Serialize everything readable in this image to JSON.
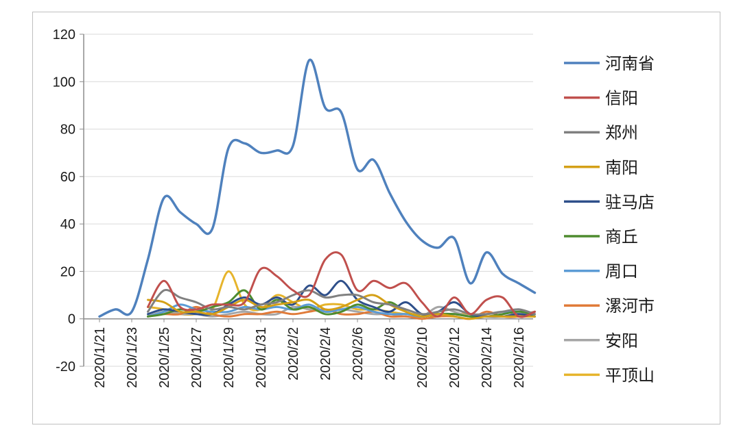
{
  "chart_data": {
    "type": "line",
    "title": "",
    "xlabel": "",
    "ylabel": "",
    "ylim": [
      -20,
      120
    ],
    "yticks": [
      -20,
      0,
      20,
      40,
      60,
      80,
      100,
      120
    ],
    "grid": "horizontal",
    "legend": "right",
    "x": [
      "2020/1/21",
      "2020/1/22",
      "2020/1/23",
      "2020/1/24",
      "2020/1/25",
      "2020/1/26",
      "2020/1/27",
      "2020/1/28",
      "2020/1/29",
      "2020/1/30",
      "2020/1/31",
      "2020/2/1",
      "2020/2/2",
      "2020/2/3",
      "2020/2/4",
      "2020/2/5",
      "2020/2/6",
      "2020/2/7",
      "2020/2/8",
      "2020/2/9",
      "2020/2/10",
      "2020/2/11",
      "2020/2/12",
      "2020/2/13",
      "2020/2/14",
      "2020/2/15",
      "2020/2/16",
      "2020/2/17"
    ],
    "xtick_labels": [
      "2020/1/21",
      "2020/1/23",
      "2020/1/25",
      "2020/1/27",
      "2020/1/29",
      "2020/1/31",
      "2020/2/2",
      "2020/2/4",
      "2020/2/6",
      "2020/2/8",
      "2020/2/10",
      "2020/2/12",
      "2020/2/14",
      "2020/2/16"
    ],
    "series": [
      {
        "name": "河南省",
        "color": "#4f81bd",
        "values": [
          1,
          4,
          3,
          25,
          51,
          45,
          40,
          38,
          72,
          74,
          70,
          71,
          73,
          109,
          89,
          87,
          63,
          67,
          53,
          41,
          33,
          30,
          34,
          15,
          28,
          19,
          15,
          11
        ]
      },
      {
        "name": "信阳",
        "color": "#c0504d",
        "values": [
          null,
          null,
          null,
          5,
          16,
          5,
          4,
          6,
          6,
          7,
          21,
          18,
          12,
          10,
          25,
          27,
          12,
          16,
          13,
          15,
          7,
          1,
          9,
          2,
          8,
          9,
          1,
          3
        ]
      },
      {
        "name": "郑州",
        "color": "#808080",
        "values": [
          null,
          null,
          null,
          3,
          12,
          9,
          7,
          4,
          5,
          4,
          6,
          7,
          10,
          12,
          9,
          10,
          10,
          7,
          6,
          4,
          2,
          3,
          4,
          2,
          2,
          3,
          4,
          2
        ]
      },
      {
        "name": "南阳",
        "color": "#d4a017",
        "values": [
          null,
          null,
          null,
          8,
          7,
          3,
          3,
          2,
          5,
          8,
          5,
          6,
          7,
          8,
          4,
          5,
          8,
          10,
          6,
          3,
          1,
          2,
          1,
          0,
          1,
          1,
          1,
          1
        ]
      },
      {
        "name": "驻马店",
        "color": "#2e4f8a",
        "values": [
          null,
          null,
          null,
          2,
          4,
          3,
          2,
          2,
          6,
          9,
          6,
          9,
          6,
          14,
          10,
          16,
          8,
          5,
          3,
          7,
          2,
          3,
          7,
          2,
          1,
          1,
          2,
          1
        ]
      },
      {
        "name": "商丘",
        "color": "#4e8c2f",
        "values": [
          null,
          null,
          null,
          1,
          2,
          4,
          3,
          5,
          7,
          12,
          4,
          8,
          4,
          5,
          2,
          3,
          6,
          4,
          7,
          3,
          1,
          2,
          2,
          1,
          1,
          2,
          3,
          2
        ]
      },
      {
        "name": "周口",
        "color": "#5b9bd5",
        "values": [
          null,
          null,
          null,
          1,
          3,
          6,
          4,
          3,
          3,
          5,
          4,
          5,
          4,
          6,
          3,
          4,
          5,
          3,
          2,
          2,
          1,
          2,
          2,
          1,
          1,
          2,
          4,
          1
        ]
      },
      {
        "name": "漯河市",
        "color": "#e07b39",
        "values": [
          null,
          null,
          null,
          1,
          2,
          2,
          5,
          2,
          1,
          2,
          2,
          3,
          2,
          3,
          4,
          2,
          2,
          3,
          1,
          1,
          0,
          1,
          1,
          0,
          3,
          1,
          1,
          3
        ]
      },
      {
        "name": "安阳",
        "color": "#a5a5a5",
        "values": [
          null,
          null,
          null,
          1,
          3,
          2,
          2,
          1,
          2,
          3,
          2,
          2,
          5,
          4,
          3,
          4,
          3,
          2,
          2,
          1,
          1,
          5,
          3,
          1,
          2,
          3,
          2,
          3
        ]
      },
      {
        "name": "平顶山",
        "color": "#e6b42c",
        "values": [
          null,
          null,
          null,
          5,
          4,
          2,
          2,
          4,
          20,
          6,
          4,
          10,
          7,
          4,
          6,
          6,
          4,
          4,
          3,
          2,
          2,
          1,
          2,
          2,
          1,
          1,
          1,
          1
        ]
      }
    ]
  }
}
